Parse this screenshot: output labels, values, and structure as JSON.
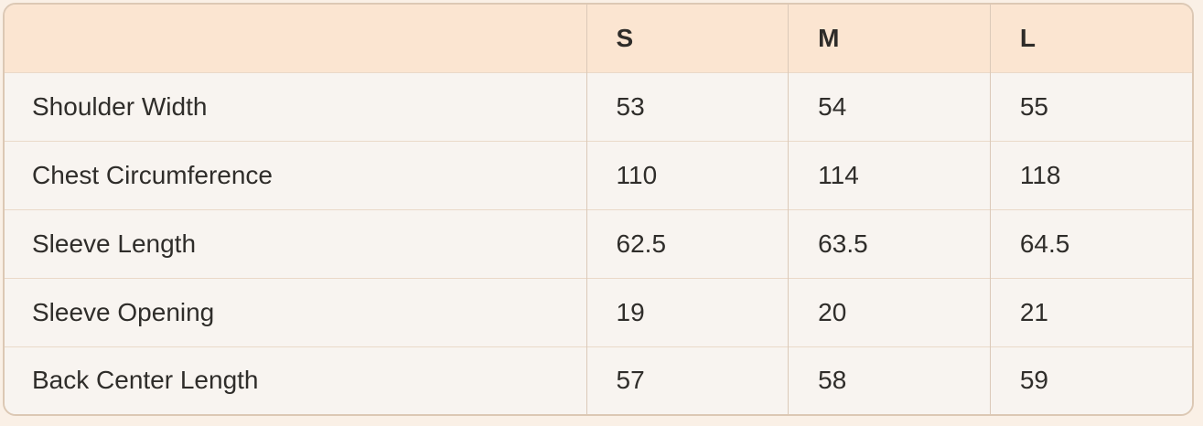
{
  "page": {
    "background_color": "#faf0e6"
  },
  "table": {
    "corner_label": "",
    "columns": [
      "S",
      "M",
      "L"
    ],
    "rows": [
      {
        "label": "Shoulder Width",
        "values": [
          "53",
          "54",
          "55"
        ]
      },
      {
        "label": "Chest Circumference",
        "values": [
          "110",
          "114",
          "118"
        ]
      },
      {
        "label": "Sleeve Length",
        "values": [
          "62.5",
          "63.5",
          "64.5"
        ]
      },
      {
        "label": "Sleeve Opening",
        "values": [
          "19",
          "20",
          "21"
        ]
      },
      {
        "label": "Back Center Length",
        "values": [
          "57",
          "58",
          "59"
        ]
      }
    ],
    "colors": {
      "header_background": "#fbe5d1",
      "row_background": "#f8f4f0",
      "outer_border": "#dcc8b4",
      "vertical_divider": "#dbc9b8",
      "horizontal_divider": "#ead9c8",
      "text": "#2f2d2a"
    }
  },
  "chart_data": {
    "type": "table",
    "columns": [
      "",
      "S",
      "M",
      "L"
    ],
    "rows": [
      [
        "Shoulder Width",
        53,
        54,
        55
      ],
      [
        "Chest Circumference",
        110,
        114,
        118
      ],
      [
        "Sleeve Length",
        62.5,
        63.5,
        64.5
      ],
      [
        "Sleeve Opening",
        19,
        20,
        21
      ],
      [
        "Back Center Length",
        57,
        58,
        59
      ]
    ]
  }
}
